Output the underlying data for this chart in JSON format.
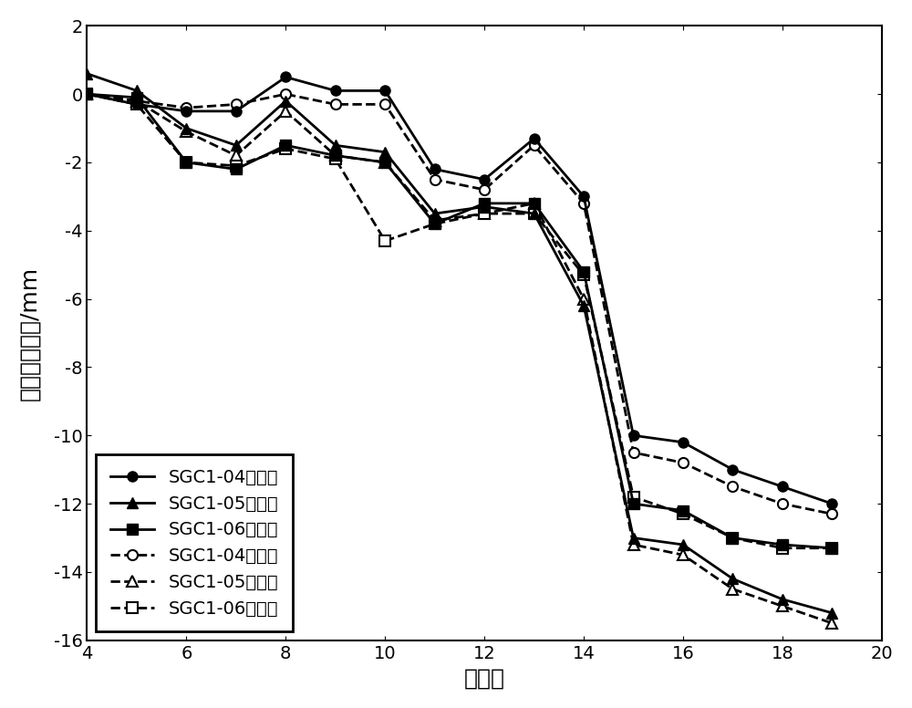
{
  "sgc104_mon_x": [
    4,
    5,
    6,
    7,
    8,
    9,
    10,
    11,
    12,
    13,
    14,
    15,
    16,
    17,
    18,
    19
  ],
  "sgc104_mon_y": [
    0.0,
    -0.3,
    -0.5,
    -0.5,
    0.5,
    0.1,
    0.1,
    -2.2,
    -2.5,
    -1.3,
    -3.0,
    -10.0,
    -10.2,
    -11.0,
    -11.5,
    -12.0
  ],
  "sgc105_mon_x": [
    4,
    5,
    6,
    7,
    8,
    9,
    10,
    11,
    12,
    13,
    14,
    15,
    16,
    17,
    18,
    19
  ],
  "sgc105_mon_y": [
    0.6,
    0.1,
    -1.0,
    -1.5,
    -0.2,
    -1.5,
    -1.7,
    -3.5,
    -3.3,
    -3.5,
    -6.2,
    -13.0,
    -13.2,
    -14.2,
    -14.8,
    -15.2
  ],
  "sgc106_mon_x": [
    4,
    5,
    6,
    7,
    8,
    9,
    10,
    11,
    12,
    13,
    14,
    15,
    16,
    17,
    18,
    19
  ],
  "sgc106_mon_y": [
    0.0,
    -0.1,
    -2.0,
    -2.2,
    -1.5,
    -1.8,
    -2.0,
    -3.8,
    -3.2,
    -3.2,
    -5.2,
    -12.0,
    -12.2,
    -13.0,
    -13.2,
    -13.3
  ],
  "sgc104_pre_x": [
    4,
    5,
    6,
    7,
    8,
    9,
    10,
    11,
    12,
    13,
    14,
    15,
    16,
    17,
    18,
    19
  ],
  "sgc104_pre_y": [
    0.0,
    -0.2,
    -0.4,
    -0.3,
    0.0,
    -0.3,
    -0.3,
    -2.5,
    -2.8,
    -1.5,
    -3.2,
    -10.5,
    -10.8,
    -11.5,
    -12.0,
    -12.3
  ],
  "sgc105_pre_x": [
    4,
    5,
    6,
    7,
    8,
    9,
    10,
    11,
    12,
    13,
    14,
    15,
    16,
    17,
    18,
    19
  ],
  "sgc105_pre_y": [
    0.0,
    -0.2,
    -1.1,
    -1.8,
    -0.5,
    -1.8,
    -2.0,
    -3.7,
    -3.5,
    -3.2,
    -6.0,
    -13.2,
    -13.5,
    -14.5,
    -15.0,
    -15.5
  ],
  "sgc106_pre_x": [
    4,
    5,
    6,
    7,
    8,
    9,
    10,
    11,
    12,
    13,
    14,
    15,
    16,
    17,
    18,
    19
  ],
  "sgc106_pre_y": [
    0.0,
    -0.3,
    -2.0,
    -2.1,
    -1.6,
    -1.9,
    -4.3,
    -3.8,
    -3.5,
    -3.5,
    -5.3,
    -11.8,
    -12.3,
    -13.0,
    -13.3,
    -13.3
  ],
  "xlim": [
    4,
    20
  ],
  "ylim": [
    -16,
    2
  ],
  "xlabel": "施工步",
  "ylabel": "路基索向变形/mm",
  "xticks": [
    4,
    6,
    8,
    10,
    12,
    14,
    16,
    18,
    20
  ],
  "yticks": [
    2,
    0,
    -2,
    -4,
    -6,
    -8,
    -10,
    -12,
    -14,
    -16
  ],
  "legend_labels": [
    "SGC1-04监测值",
    "SGC1-05监测值",
    "SGC1-06监测值",
    "SGC1-04预测值",
    "SGC1-05预测值",
    "SGC1-06预测值"
  ],
  "line_color": "#000000",
  "linewidth": 2.0,
  "markersize": 8,
  "legend_frame_linewidth": 2.0
}
